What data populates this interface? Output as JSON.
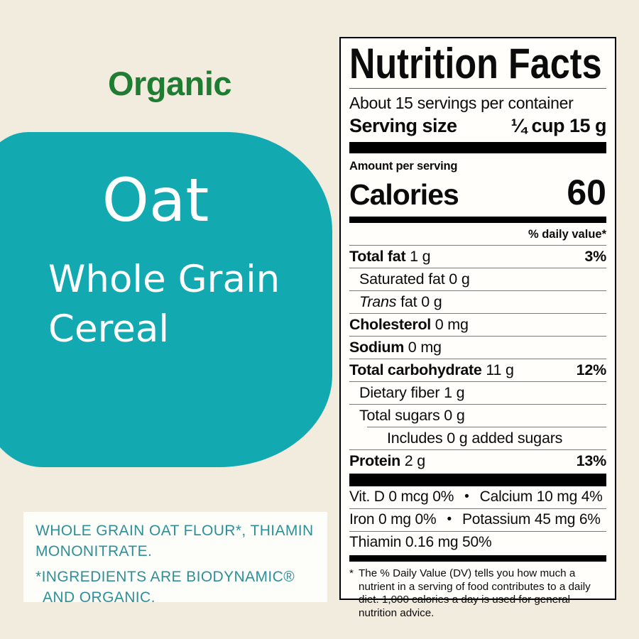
{
  "colors": {
    "cream": "#f2ecde",
    "teal": "#12a9b1",
    "green": "#1f7d33",
    "ink-teal": "#2f8f97",
    "label-bg": "#fffefa"
  },
  "left": {
    "organic": "Organic",
    "product": {
      "line1": "Oat",
      "line2": "Whole Grain",
      "line3": "Cereal"
    },
    "ingredients": {
      "line1": "WHOLE GRAIN OAT FLOUR*, THIAMIN MONONITRATE.",
      "line2": "*INGREDIENTS ARE BIODYNAMIC® AND ORGANIC."
    }
  },
  "nutrition": {
    "title": "Nutrition Facts",
    "servings_per_container": "About 15 servings per container",
    "serving_size_label": "Serving size",
    "serving_size_value": "¼ cup 15 g",
    "amount_per_serving": "Amount per serving",
    "calories_label": "Calories",
    "calories_value": "60",
    "daily_value_header": "% daily value*",
    "rows": [
      {
        "bold": "Total fat",
        "text": " 1 g",
        "dv": "3%",
        "indent": 0
      },
      {
        "text": "Saturated fat 0 g",
        "indent": 1
      },
      {
        "italic": "Trans",
        "text": " fat 0 g",
        "indent": 1
      },
      {
        "bold": "Cholesterol",
        "text": " 0 mg",
        "indent": 0
      },
      {
        "bold": "Sodium",
        "text": " 0 mg",
        "indent": 0
      },
      {
        "bold": "Total carbohydrate",
        "text": " 11 g",
        "dv": "12%",
        "indent": 0
      },
      {
        "text": "Dietary fiber 1 g",
        "indent": 1
      },
      {
        "text": "Total sugars 0 g",
        "indent": 1
      },
      {
        "text": "Includes 0 g added sugars",
        "indent": 2,
        "sep_indent": true
      },
      {
        "bold": "Protein",
        "text": " 2 g",
        "dv": "13%",
        "indent": 0
      }
    ],
    "micronutrients": [
      {
        "left": "Vit. D 0 mcg 0%",
        "right": "Calcium 10 mg 4%"
      },
      {
        "left": "Iron 0 mg 0%",
        "right": "Potassium 45 mg 6%"
      },
      {
        "left": "Thiamin 0.16 mg 50%"
      }
    ],
    "footnote_marker": "*",
    "footnote": "The % Daily Value (DV) tells you how much a nutrient in a serving of food contributes to a daily diet. 1,000 calories a day is used for general nutrition advice."
  }
}
